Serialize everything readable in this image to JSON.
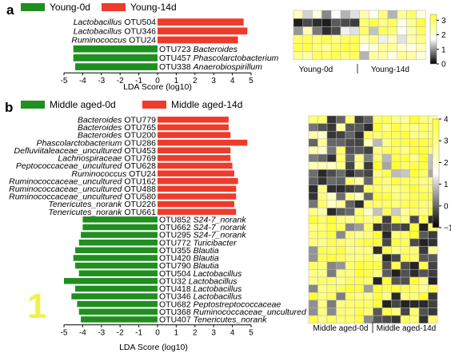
{
  "colors": {
    "young0": "#1f8f1f",
    "young14": "#ee3b2b",
    "heat_low": "#000000",
    "heat_high": "#ffff33"
  },
  "chart_data": [
    {
      "type": "bar",
      "panel": "a",
      "legend": [
        "Young-0d",
        "Young-14d"
      ],
      "xlabel": "LDA Score (log10)",
      "xlim": [
        -5,
        5
      ],
      "xticks": [
        "-5",
        "-4",
        "-3",
        "-2",
        "-1",
        "0",
        "1",
        "2",
        "3",
        "4",
        "5"
      ],
      "bars": [
        {
          "taxon": "OTU504",
          "name": "Lactobacillus",
          "value": 4.6,
          "group": "Young-14d"
        },
        {
          "taxon": "OTU346",
          "name": "Lactobacillus",
          "value": 4.8,
          "group": "Young-14d"
        },
        {
          "taxon": "OTU24",
          "name": "Ruminococcus",
          "value": 4.3,
          "group": "Young-14d"
        },
        {
          "taxon": "OTU723",
          "name": "Bacteroides",
          "value": -4.5,
          "group": "Young-0d"
        },
        {
          "taxon": "OTU457",
          "name": "Phascolarctobacterium",
          "value": -4.5,
          "group": "Young-0d"
        },
        {
          "taxon": "OTU338",
          "name": "Anaerobiospirillum",
          "value": -4.4,
          "group": "Young-0d"
        }
      ]
    },
    {
      "type": "heatmap",
      "panel": "a",
      "col_groups": [
        "Young-0d",
        "Young-14d"
      ],
      "colorbar": {
        "ticks": [
          "0",
          "1",
          "2",
          "3"
        ],
        "range": [
          0,
          3.4
        ]
      },
      "rows": [
        [
          2.3,
          1.4,
          2.0,
          0.9,
          1.7,
          1.2,
          1.5,
          2.4,
          1.8,
          2.8,
          1.2,
          2.6,
          3.0,
          2.0
        ],
        [
          0.2,
          0.5,
          0.3,
          0.2,
          0.6,
          0.5,
          0.4,
          2.9,
          3.2,
          2.7,
          3.1,
          1.9,
          2.6,
          3.3
        ],
        [
          1.0,
          2.4,
          0.8,
          0.3,
          0.5,
          1.6,
          1.5,
          3.0,
          1.3,
          3.1,
          2.8,
          1.8,
          2.4,
          3.0
        ],
        [
          3.0,
          3.1,
          2.9,
          3.2,
          2.7,
          3.0,
          3.1,
          2.3,
          2.8,
          1.6,
          2.3,
          1.5,
          2.4,
          2.7
        ],
        [
          3.1,
          3.2,
          2.8,
          2.5,
          3.0,
          3.2,
          3.1,
          1.8,
          2.0,
          2.6,
          2.5,
          2.1,
          1.9,
          2.3
        ],
        [
          2.6,
          2.4,
          3.0,
          2.9,
          3.1,
          2.8,
          3.0,
          1.2,
          2.5,
          2.4,
          1.9,
          2.6,
          2.5,
          2.0
        ]
      ]
    },
    {
      "type": "bar",
      "panel": "b",
      "legend": [
        "Middle aged-0d",
        "Middle aged-14d"
      ],
      "xlabel": "LDA Score (log10)",
      "xlim": [
        -5,
        5
      ],
      "xticks": [
        "-5",
        "-4",
        "-3",
        "-2",
        "-1",
        "0",
        "1",
        "2",
        "3",
        "4",
        "5"
      ],
      "bars": [
        {
          "taxon": "OTU779",
          "name": "Bacteroides",
          "value": 3.8,
          "group": "Middle aged-14d"
        },
        {
          "taxon": "OTU765",
          "name": "Bacteroides",
          "value": 3.8,
          "group": "Middle aged-14d"
        },
        {
          "taxon": "OTU200",
          "name": "Bacteroides",
          "value": 3.9,
          "group": "Middle aged-14d"
        },
        {
          "taxon": "OTU286",
          "name": "Phascolarctobacterium",
          "value": 4.8,
          "group": "Middle aged-14d"
        },
        {
          "taxon": "OTU453",
          "name": "Defluviitaleaceae_uncultured",
          "value": 3.9,
          "group": "Middle aged-14d"
        },
        {
          "taxon": "OTU769",
          "name": "Lachnospiraceae",
          "value": 3.9,
          "group": "Middle aged-14d"
        },
        {
          "taxon": "OTU628",
          "name": "Peptococcaceae_uncultured",
          "value": 4.0,
          "group": "Middle aged-14d"
        },
        {
          "taxon": "OTU24",
          "name": "Ruminococcus",
          "value": 4.1,
          "group": "Middle aged-14d"
        },
        {
          "taxon": "OTU162",
          "name": "Ruminococcaceae_uncultured",
          "value": 4.3,
          "group": "Middle aged-14d"
        },
        {
          "taxon": "OTU488",
          "name": "Ruminococcaceae_uncultured",
          "value": 4.2,
          "group": "Middle aged-14d"
        },
        {
          "taxon": "OTU580",
          "name": "Ruminococcaceae_uncultured",
          "value": 4.2,
          "group": "Middle aged-14d"
        },
        {
          "taxon": "OTU226",
          "name": "Tenericutes_norank",
          "value": 4.1,
          "group": "Middle aged-14d"
        },
        {
          "taxon": "OTU661",
          "name": "Tenericutes_norank",
          "value": 4.2,
          "group": "Middle aged-14d"
        },
        {
          "taxon": "OTU852",
          "name": "S24-7_norank",
          "value": -4.0,
          "group": "Middle aged-0d"
        },
        {
          "taxon": "OTU662",
          "name": "S24-7_norank",
          "value": -4.0,
          "group": "Middle aged-0d"
        },
        {
          "taxon": "OTU295",
          "name": "S24-7_norank",
          "value": -4.1,
          "group": "Middle aged-0d"
        },
        {
          "taxon": "OTU772",
          "name": "Turicibacter",
          "value": -4.2,
          "group": "Middle aged-0d"
        },
        {
          "taxon": "OTU355",
          "name": "Blautia",
          "value": -4.4,
          "group": "Middle aged-0d"
        },
        {
          "taxon": "OTU420",
          "name": "Blautia",
          "value": -4.5,
          "group": "Middle aged-0d"
        },
        {
          "taxon": "OTU790",
          "name": "Blautia",
          "value": -4.4,
          "group": "Middle aged-0d"
        },
        {
          "taxon": "OTU504",
          "name": "Lactobacillus",
          "value": -4.2,
          "group": "Middle aged-0d"
        },
        {
          "taxon": "OTU32",
          "name": "Lactobacillus",
          "value": -5.0,
          "group": "Middle aged-0d"
        },
        {
          "taxon": "OTU418",
          "name": "Lactobacillus",
          "value": -4.4,
          "group": "Middle aged-0d"
        },
        {
          "taxon": "OTU346",
          "name": "Lactobacillus",
          "value": -4.6,
          "group": "Middle aged-0d"
        },
        {
          "taxon": "OTU682",
          "name": "Peptostreptococcaceae",
          "value": -4.3,
          "group": "Middle aged-0d"
        },
        {
          "taxon": "OTU368",
          "name": "Ruminococcaceae_uncultured",
          "value": -4.2,
          "group": "Middle aged-0d"
        },
        {
          "taxon": "OTU407",
          "name": "Tenericutes_norank",
          "value": -4.1,
          "group": "Middle aged-0d"
        }
      ]
    },
    {
      "type": "heatmap",
      "panel": "b",
      "col_groups": [
        "Middle aged-0d",
        "Middle aged-14d"
      ],
      "colorbar": {
        "ticks": [
          "−1",
          "0",
          "1",
          "2",
          "3",
          "4"
        ],
        "range": [
          -1,
          4
        ]
      },
      "ncols": 14
    }
  ],
  "annotation": {
    "big_number": "1"
  }
}
